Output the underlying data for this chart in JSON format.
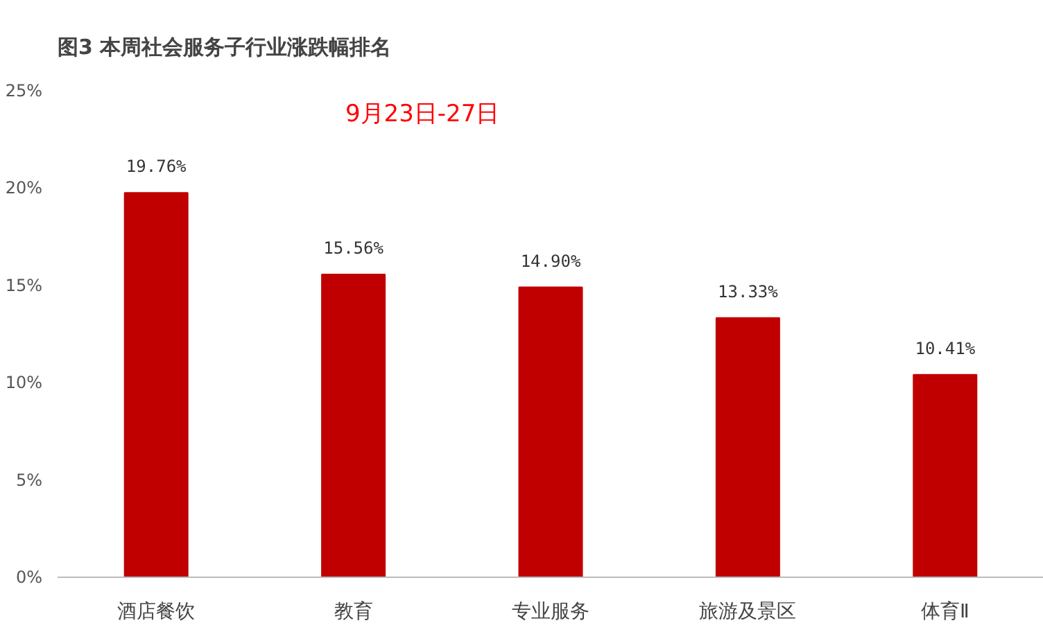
{
  "chart_data": {
    "type": "bar",
    "title": "图3 本周社会服务子行业涨跌幅排名",
    "categories": [
      "酒店餐饮",
      "教育",
      "专业服务",
      "旅游及景区",
      "体育Ⅱ"
    ],
    "values": [
      19.76,
      15.56,
      14.9,
      13.33,
      10.41
    ],
    "value_labels": [
      "19.76%",
      "15.56%",
      "14.90%",
      "13.33%",
      "10.41%"
    ],
    "color": "#c00000",
    "ylim": [
      0,
      25
    ],
    "yticks": [
      {
        "value": 0,
        "label": "0%"
      },
      {
        "value": 5,
        "label": "5%"
      },
      {
        "value": 10,
        "label": "10%"
      },
      {
        "value": 15,
        "label": "15%"
      },
      {
        "value": 20,
        "label": "20%"
      },
      {
        "value": 25,
        "label": "25%"
      }
    ],
    "annotations": [
      "9月23日-27日"
    ],
    "grid": false
  }
}
